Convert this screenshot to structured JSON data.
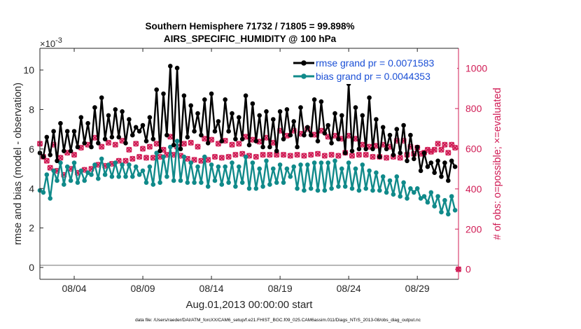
{
  "colors": {
    "rmse": "#000000",
    "bias": "#108a8a",
    "obs": "#d01c55",
    "zero_line": "#b8b8b8",
    "legend_text": "#1a4fd6",
    "axis": "#262626"
  },
  "chart_data": {
    "type": "line",
    "title_line1": "Southern Hemisphere 71732 / 71805 = 99.898%",
    "title_line2": "AIRS_SPECIFIC_HUMIDITY @ 100 hPa",
    "ylabel_left": "rmse and bias (model - observation)",
    "ylabel_right": "# of obs: o=possible; ×=evaluated",
    "xlabel": "Aug.01,2013 00:00:00 start",
    "exponent_label": "×10",
    "exponent_value": "-3",
    "footer": "data file: /Users/raeder/DAI/ATM_forcXX/CAM6_setup/f.e21.FHIST_BGC.f09_025.CAM6assim.011/Diags_NTrS_2013-08/obs_diag_output.nc",
    "xlim": [
      1.5,
      32.0
    ],
    "ylim_left": [
      -0.6,
      11.1
    ],
    "ylim_right": [
      -50,
      1100
    ],
    "x_ticks": [
      {
        "x": 4,
        "label": "08/04"
      },
      {
        "x": 9,
        "label": "08/09"
      },
      {
        "x": 14,
        "label": "08/14"
      },
      {
        "x": 19,
        "label": "08/19"
      },
      {
        "x": 24,
        "label": "08/24"
      },
      {
        "x": 29,
        "label": "08/29"
      }
    ],
    "y_left_ticks": [
      {
        "v": 0,
        "label": "0"
      },
      {
        "v": 2,
        "label": "2"
      },
      {
        "v": 4,
        "label": "4"
      },
      {
        "v": 6,
        "label": "6"
      },
      {
        "v": 8,
        "label": "8"
      },
      {
        "v": 10,
        "label": "10"
      }
    ],
    "y_right_ticks": [
      {
        "v": 0,
        "label": "0"
      },
      {
        "v": 200,
        "label": "200"
      },
      {
        "v": 400,
        "label": "400"
      },
      {
        "v": 600,
        "label": "600"
      },
      {
        "v": 800,
        "label": "800"
      },
      {
        "v": 1000,
        "label": "1000"
      }
    ],
    "legend": [
      {
        "name": "rmse grand pr = 0.0071583",
        "key": "rmse"
      },
      {
        "name": "bias grand pr = 0.0044353",
        "key": "bias"
      }
    ],
    "x_start": 1.5,
    "x_step": 0.25,
    "series": [
      {
        "name": "rmse",
        "values": [
          5.8,
          5.6,
          6.6,
          5.7,
          6.9,
          5.4,
          7.3,
          5.9,
          6.9,
          5.9,
          6.9,
          6.1,
          7.6,
          6.3,
          7.3,
          6.1,
          8.1,
          6.3,
          8.6,
          6.5,
          7.7,
          6.6,
          8.0,
          6.6,
          7.9,
          6.3,
          7.5,
          6.7,
          7.1,
          6.9,
          7.2,
          6.4,
          7.6,
          6.5,
          9.0,
          5.9,
          8.8,
          6.7,
          10.2,
          6.2,
          10.1,
          6.0,
          8.7,
          6.6,
          8.2,
          6.9,
          7.8,
          6.7,
          8.5,
          6.3,
          8.8,
          6.9,
          7.4,
          6.4,
          8.5,
          6.9,
          7.8,
          6.5,
          7.6,
          6.5,
          8.7,
          6.2,
          8.3,
          6.4,
          7.7,
          6.1,
          7.9,
          6.1,
          7.5,
          5.9,
          7.9,
          6.5,
          8.0,
          6.7,
          7.4,
          6.1,
          8.1,
          6.7,
          7.1,
          6.7,
          8.5,
          6.4,
          8.4,
          6.8,
          7.2,
          6.3,
          7.8,
          6.5,
          7.7,
          5.8,
          9.3,
          5.9,
          8.1,
          6.0,
          7.7,
          6.0,
          8.6,
          6.0,
          7.5,
          5.6,
          7.1,
          6.0,
          6.7,
          5.7,
          7.0,
          5.8,
          7.2,
          5.4,
          6.7,
          5.5,
          6.1,
          4.9,
          5.8,
          5.1,
          5.3,
          4.8,
          5.4,
          4.6,
          5.3,
          4.4,
          5.4,
          5.1
        ]
      },
      {
        "name": "bias",
        "values": [
          3.9,
          3.8,
          4.7,
          3.5,
          4.9,
          4.4,
          5.3,
          4.2,
          5.1,
          4.4,
          5.3,
          4.3,
          4.9,
          4.4,
          4.8,
          4.7,
          5.2,
          4.5,
          5.5,
          4.7,
          5.2,
          4.6,
          5.3,
          4.6,
          5.2,
          4.6,
          5.2,
          4.6,
          5.1,
          4.7,
          4.9,
          4.3,
          5.1,
          4.2,
          5.8,
          4.3,
          5.6,
          4.6,
          6.1,
          4.4,
          6.4,
          4.4,
          5.6,
          4.3,
          5.3,
          4.3,
          5.1,
          4.3,
          5.6,
          4.1,
          5.2,
          4.4,
          5.1,
          4.2,
          5.1,
          4.3,
          5.3,
          4.1,
          5.1,
          4.3,
          5.6,
          4.0,
          5.3,
          4.0,
          5.0,
          4.1,
          5.4,
          4.2,
          5.0,
          4.3,
          5.2,
          4.3,
          5.0,
          4.6,
          5.1,
          4.0,
          5.2,
          3.9,
          5.2,
          4.0,
          5.3,
          3.9,
          5.3,
          3.9,
          5.3,
          4.0,
          5.4,
          4.1,
          5.0,
          4.1,
          5.3,
          4.0,
          5.0,
          3.9,
          5.2,
          4.0,
          4.9,
          3.9,
          4.8,
          3.9,
          4.6,
          3.8,
          4.4,
          3.7,
          4.6,
          3.6,
          4.3,
          3.5,
          4.0,
          3.8,
          4.0,
          3.5,
          3.6,
          3.3,
          3.8,
          3.1,
          3.6,
          2.8,
          3.4,
          2.7,
          3.6,
          2.9
        ]
      },
      {
        "name": "obs_possible",
        "values": [
          625,
          560,
          540,
          505,
          620,
          490,
          555,
          470,
          580,
          500,
          570,
          480,
          605,
          495,
          620,
          500,
          655,
          520,
          610,
          515,
          630,
          525,
          620,
          540,
          640,
          540,
          595,
          550,
          625,
          560,
          600,
          555,
          610,
          555,
          625,
          560,
          595,
          570,
          660,
          570,
          610,
          565,
          625,
          550,
          630,
          545,
          610,
          540,
          650,
          545,
          645,
          560,
          625,
          555,
          640,
          560,
          620,
          570,
          625,
          575,
          660,
          565,
          645,
          560,
          635,
          570,
          655,
          570,
          630,
          570,
          690,
          570,
          665,
          565,
          690,
          570,
          675,
          565,
          700,
          570,
          670,
          575,
          690,
          565,
          660,
          570,
          665,
          565,
          650,
          580,
          665,
          565,
          650,
          570,
          620,
          570,
          610,
          560,
          615,
          560,
          620,
          555,
          610,
          560,
          640,
          555,
          640,
          570,
          610,
          575,
          605,
          575,
          580,
          595,
          585,
          595,
          625,
          595,
          620,
          580,
          620,
          605
        ]
      },
      {
        "name": "obs_evaluated",
        "values": [
          625,
          560,
          540,
          505,
          620,
          490,
          555,
          470,
          580,
          500,
          570,
          480,
          605,
          495,
          620,
          500,
          655,
          520,
          610,
          515,
          630,
          525,
          620,
          540,
          640,
          540,
          595,
          550,
          625,
          560,
          600,
          555,
          610,
          555,
          625,
          560,
          595,
          570,
          660,
          570,
          610,
          565,
          625,
          550,
          630,
          545,
          610,
          540,
          650,
          545,
          645,
          560,
          625,
          555,
          640,
          560,
          620,
          570,
          625,
          575,
          660,
          565,
          645,
          560,
          635,
          570,
          655,
          570,
          630,
          570,
          690,
          570,
          665,
          565,
          690,
          570,
          675,
          565,
          700,
          570,
          670,
          575,
          690,
          565,
          660,
          570,
          665,
          565,
          650,
          580,
          665,
          565,
          650,
          570,
          620,
          570,
          610,
          560,
          615,
          560,
          620,
          555,
          610,
          560,
          640,
          555,
          640,
          570,
          610,
          575,
          605,
          575,
          580,
          595,
          585,
          595,
          625,
          595,
          620,
          580,
          620,
          605
        ]
      }
    ],
    "trailing_point": {
      "x": 32.0,
      "obs": 0
    }
  }
}
